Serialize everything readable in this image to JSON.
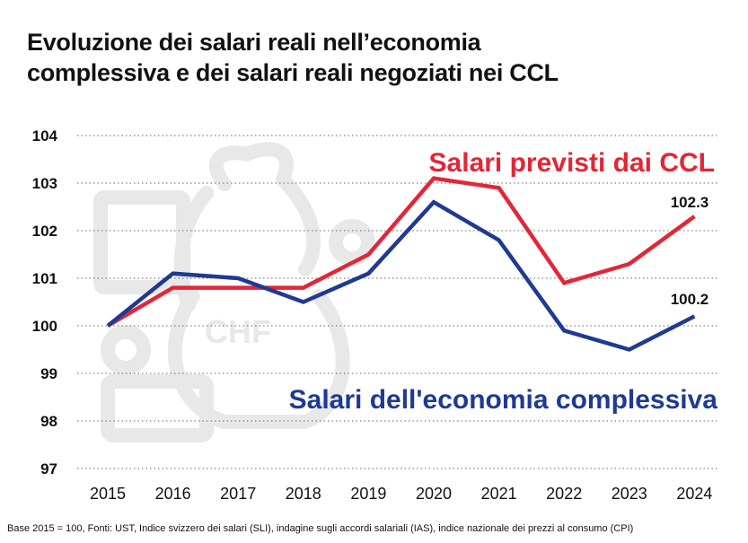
{
  "title": {
    "line1": "Evoluzione dei salari reali nell’economia",
    "line2": "complessiva e dei salari reali negoziati nei CCL"
  },
  "footnote": "Base 2015 = 100, Fonti: UST, Indice svizzero dei salari (SLI), indagine sugli accordi salariali (IAS), indice nazionale dei prezzi al consumo (CPI)",
  "watermark_icon": "money-bag-chf-icon",
  "watermark_text": "CHF",
  "chart_data": {
    "type": "line",
    "title": "Evoluzione dei salari reali nell’economia complessiva e dei salari reali negoziati nei CCL",
    "xlabel": "",
    "ylabel": "",
    "categories": [
      "2015",
      "2016",
      "2017",
      "2018",
      "2019",
      "2020",
      "2021",
      "2022",
      "2023",
      "2024"
    ],
    "ylim": [
      97,
      104
    ],
    "yticks": [
      97,
      98,
      99,
      100,
      101,
      102,
      103,
      104
    ],
    "grid": "horizontal-dotted",
    "series": [
      {
        "name": "Salari previsti dai CCL",
        "color": "#e32636",
        "values": [
          100.0,
          100.8,
          100.8,
          100.8,
          101.5,
          103.1,
          102.9,
          100.9,
          101.3,
          102.3
        ],
        "end_label": "102.3"
      },
      {
        "name": "Salari dell'economia complessiva",
        "color": "#1f3a93",
        "values": [
          100.0,
          101.1,
          101.0,
          100.5,
          101.1,
          102.6,
          101.8,
          99.9,
          99.5,
          100.2
        ],
        "end_label": "100.2"
      }
    ]
  }
}
